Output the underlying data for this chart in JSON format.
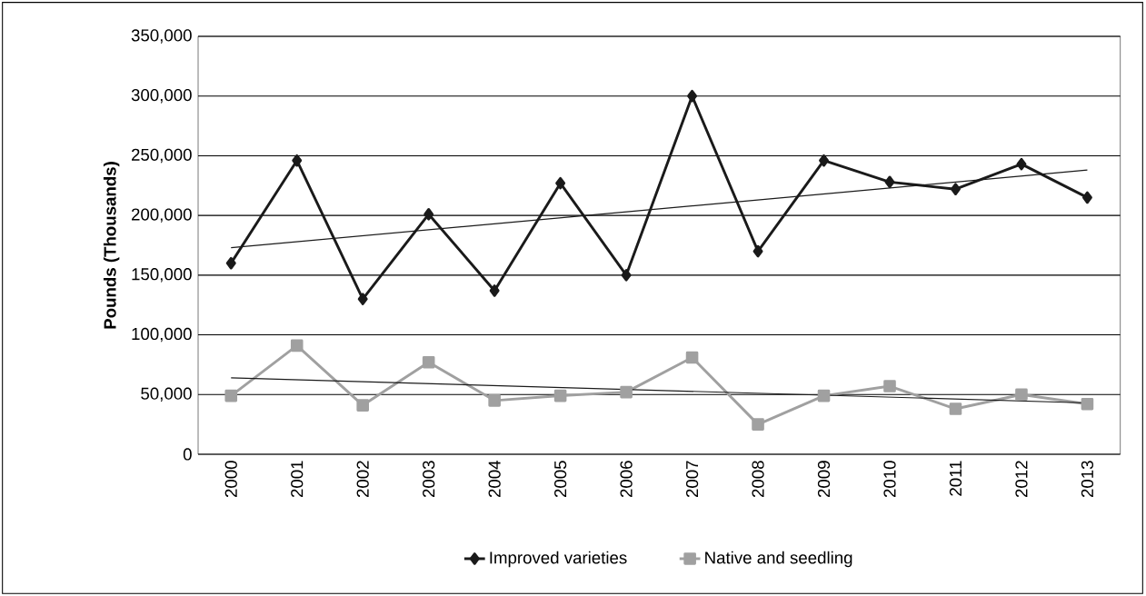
{
  "chart_data": {
    "type": "line",
    "ylabel": "Pounds (Thousands)",
    "categories": [
      "2000",
      "2001",
      "2002",
      "2003",
      "2004",
      "2005",
      "2006",
      "2007",
      "2008",
      "2009",
      "2010",
      "2011",
      "2012",
      "2013"
    ],
    "series": [
      {
        "name": "Improved varieties",
        "color": "#1a1a1a",
        "marker": "diamond",
        "values": [
          160000,
          246000,
          130000,
          201000,
          137000,
          227000,
          150000,
          300000,
          170000,
          246000,
          228000,
          222000,
          243000,
          215000
        ]
      },
      {
        "name": "Native and seedling",
        "color": "#a0a0a0",
        "marker": "square",
        "values": [
          49000,
          91000,
          41000,
          77000,
          45000,
          49000,
          52000,
          81000,
          25000,
          49000,
          57000,
          38000,
          50000,
          42000
        ]
      },
      {
        "type": "line",
        "color": "#1a1a1a",
        "marker": "none",
        "values": [
          173000,
          null,
          null,
          null,
          null,
          null,
          null,
          null,
          null,
          null,
          null,
          null,
          null,
          238000
        ]
      },
      {
        "type": "line",
        "color": "#1a1a1a",
        "marker": "none",
        "values": [
          64000,
          null,
          null,
          null,
          null,
          null,
          null,
          null,
          null,
          null,
          null,
          null,
          null,
          43000
        ]
      }
    ],
    "ylim": [
      0,
      350000
    ],
    "yticks": [
      0,
      {
        "value": 50000,
        "label": "50,000"
      },
      {
        "value": 100000,
        "label": "100,000"
      },
      {
        "value": 150000,
        "label": "150,000"
      },
      {
        "value": 200000,
        "label": "200,000"
      },
      {
        "value": 250000,
        "label": "250,000"
      },
      {
        "value": 300000,
        "label": "300,000"
      },
      {
        "value": 350000,
        "label": "350,000"
      }
    ],
    "grid": "y",
    "legend": "bottom"
  }
}
